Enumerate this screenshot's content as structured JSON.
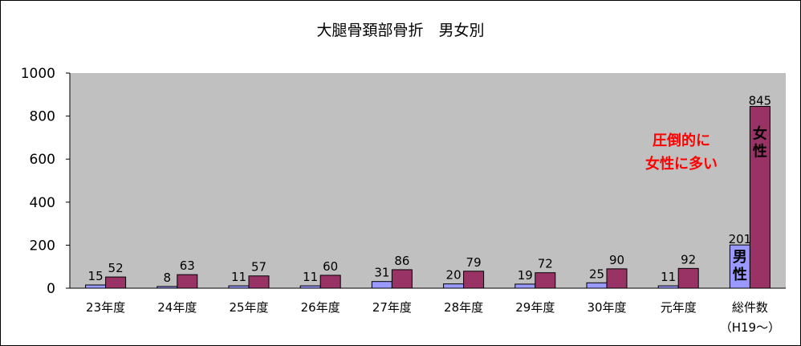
{
  "chart_data": {
    "type": "bar",
    "title": "大腿骨頚部骨折　男女別",
    "xlabel": "",
    "ylabel": "",
    "ylim": [
      0,
      1000
    ],
    "yticks": [
      0,
      200,
      400,
      600,
      800,
      1000
    ],
    "categories": [
      "23年度",
      "24年度",
      "25年度",
      "26年度",
      "27年度",
      "28年度",
      "29年度",
      "30年度",
      "元年度",
      "総件数"
    ],
    "category_sublabels": [
      "",
      "",
      "",
      "",
      "",
      "",
      "",
      "",
      "",
      "（H19～）"
    ],
    "series": [
      {
        "key": "male",
        "values": [
          15,
          8,
          11,
          11,
          31,
          20,
          19,
          25,
          11,
          201
        ],
        "color": "#9999ff"
      },
      {
        "key": "female",
        "values": [
          52,
          63,
          57,
          60,
          86,
          79,
          72,
          90,
          92,
          845
        ],
        "color": "#993366"
      }
    ],
    "plot_background": "#c0c0c0",
    "grid": false,
    "legend": "none",
    "annotations": {
      "male_in_bar": "男性",
      "female_in_bar": "女性",
      "callout_line1": "圧倒的に",
      "callout_line2": "女性に多い",
      "callout_color": "#ff0000"
    }
  }
}
